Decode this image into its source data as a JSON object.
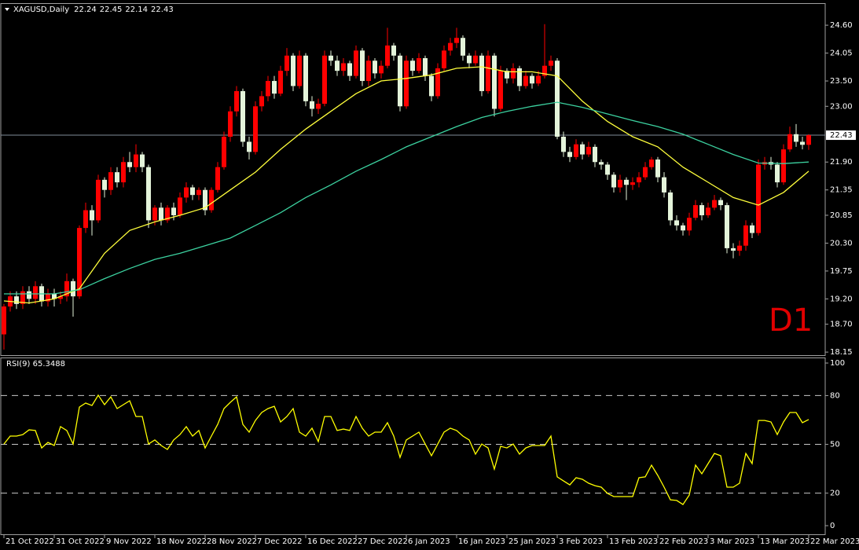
{
  "chart_data": [
    {
      "type": "candlestick",
      "symbol": "XAGUSD,Daily",
      "header_ohlc": [
        22.24,
        22.45,
        22.14,
        22.43
      ],
      "timeframe": "D1",
      "categories": [
        "21 Oct 2022",
        null,
        null,
        null,
        null,
        null,
        null,
        null,
        "31 Oct 2022",
        null,
        null,
        null,
        null,
        null,
        null,
        null,
        "9 Nov 2022",
        null,
        null,
        null,
        null,
        null,
        null,
        null,
        "18 Nov 2022",
        null,
        null,
        null,
        null,
        null,
        null,
        null,
        "28 Nov 2022",
        null,
        null,
        null,
        null,
        null,
        null,
        null,
        "7 Dec 2022",
        null,
        null,
        null,
        null,
        null,
        null,
        null,
        "16 Dec 2022",
        null,
        null,
        null,
        null,
        null,
        null,
        null,
        "27 Dec 2022",
        null,
        null,
        null,
        null,
        null,
        null,
        null,
        "6 Jan 2023",
        null,
        null,
        null,
        null,
        null,
        null,
        null,
        "16 Jan 2023",
        null,
        null,
        null,
        null,
        null,
        null,
        null,
        "25 Jan 2023",
        null,
        null,
        null,
        null,
        null,
        null,
        null,
        "3 Feb 2023",
        null,
        null,
        null,
        null,
        null,
        null,
        null,
        "13 Feb 2023",
        null,
        null,
        null,
        null,
        null,
        null,
        null,
        "22 Feb 2023",
        null,
        null,
        null,
        null,
        null,
        null,
        null,
        "3 Mar 2023",
        null,
        null,
        null,
        null,
        null,
        null,
        null,
        "13 Mar 2023",
        null,
        null,
        null,
        null,
        null,
        null,
        null,
        "22 Mar 2023"
      ],
      "open": [
        18.5,
        19.05,
        19.25,
        19.1,
        19.35,
        19.2,
        19.45,
        19.15,
        19.3,
        19.2,
        19.25,
        19.55,
        19.25,
        20.6,
        20.95,
        20.75,
        21.55,
        21.35,
        21.7,
        21.5,
        21.9,
        21.8,
        22.05,
        21.8,
        20.75,
        21.0,
        20.75,
        21.0,
        20.85,
        21.2,
        21.4,
        21.25,
        21.35,
        20.95,
        21.35,
        21.8,
        22.4,
        22.9,
        23.3,
        22.3,
        22.1,
        23.0,
        23.2,
        23.5,
        23.25,
        23.7,
        24.0,
        23.4,
        24.0,
        23.1,
        22.95,
        23.05,
        24.0,
        23.9,
        23.7,
        23.85,
        23.6,
        24.1,
        23.5,
        23.9,
        23.65,
        23.8,
        24.2,
        24.0,
        23.0,
        23.9,
        23.7,
        23.95,
        23.6,
        23.2,
        23.75,
        24.1,
        24.25,
        24.35,
        24.0,
        23.85,
        24.0,
        23.3,
        24.0,
        22.95,
        23.7,
        23.55,
        23.75,
        23.4,
        23.6,
        23.45,
        23.6,
        23.8,
        23.9,
        22.4,
        22.1,
        22.0,
        22.25,
        22.05,
        22.2,
        21.9,
        21.85,
        21.65,
        21.4,
        21.55,
        21.45,
        21.5,
        21.6,
        21.8,
        21.95,
        21.6,
        21.3,
        20.75,
        20.65,
        20.55,
        20.8,
        21.05,
        20.85,
        21.0,
        21.15,
        21.05,
        20.2,
        20.15,
        20.25,
        20.65,
        20.5,
        21.85,
        21.9,
        21.85,
        21.5,
        22.15,
        22.45,
        22.3,
        22.24
      ],
      "high": [
        19.1,
        19.35,
        19.35,
        19.45,
        19.45,
        19.55,
        19.5,
        19.4,
        19.4,
        19.35,
        19.7,
        19.6,
        20.65,
        21.1,
        21.05,
        21.65,
        21.6,
        21.8,
        21.8,
        22.0,
        22.1,
        22.25,
        22.1,
        21.85,
        21.05,
        21.1,
        21.05,
        21.1,
        21.3,
        21.5,
        21.45,
        21.4,
        21.4,
        21.4,
        21.9,
        22.5,
        23.0,
        23.4,
        23.35,
        22.4,
        23.1,
        23.3,
        23.6,
        23.6,
        23.8,
        24.15,
        24.05,
        24.1,
        24.05,
        23.2,
        23.15,
        24.1,
        24.1,
        24.0,
        23.95,
        23.9,
        24.2,
        24.15,
        24.0,
        23.95,
        23.9,
        24.55,
        24.25,
        24.05,
        24.0,
        23.95,
        24.05,
        24.0,
        23.65,
        23.85,
        24.2,
        24.35,
        24.55,
        24.4,
        24.05,
        24.1,
        24.05,
        24.1,
        24.05,
        23.8,
        23.75,
        23.85,
        23.8,
        23.7,
        23.65,
        23.7,
        24.62,
        24.0,
        23.95,
        22.5,
        22.2,
        22.35,
        22.3,
        22.3,
        22.25,
        21.95,
        21.9,
        21.7,
        21.65,
        21.6,
        21.6,
        21.7,
        21.9,
        22.0,
        22.0,
        21.7,
        21.35,
        20.85,
        20.7,
        20.9,
        21.15,
        21.1,
        21.1,
        21.25,
        21.2,
        21.1,
        20.3,
        20.35,
        20.75,
        20.7,
        21.95,
        22.0,
        22.0,
        21.9,
        22.25,
        22.6,
        22.65,
        22.4,
        22.45
      ],
      "low": [
        18.2,
        18.95,
        19.0,
        19.0,
        19.1,
        19.1,
        19.05,
        19.05,
        19.05,
        19.1,
        19.15,
        18.85,
        19.2,
        20.5,
        20.45,
        20.7,
        21.2,
        21.25,
        21.4,
        21.4,
        21.7,
        21.7,
        21.7,
        20.6,
        20.65,
        20.65,
        20.7,
        20.75,
        20.8,
        21.1,
        21.15,
        21.15,
        20.85,
        20.9,
        21.3,
        21.75,
        22.3,
        22.8,
        22.2,
        21.95,
        22.05,
        22.9,
        23.1,
        23.15,
        23.2,
        23.6,
        23.3,
        23.35,
        23.0,
        22.8,
        22.85,
        23.0,
        23.8,
        23.6,
        23.6,
        23.5,
        23.55,
        23.4,
        23.4,
        23.55,
        23.55,
        23.75,
        23.9,
        22.9,
        22.95,
        23.6,
        23.65,
        23.5,
        23.1,
        23.15,
        23.7,
        24.0,
        24.15,
        23.9,
        23.75,
        23.8,
        23.2,
        23.25,
        22.8,
        22.9,
        23.45,
        23.45,
        23.3,
        23.35,
        23.35,
        23.4,
        23.55,
        23.7,
        22.35,
        22.0,
        21.9,
        21.95,
        21.95,
        22.0,
        21.8,
        21.75,
        21.55,
        21.3,
        21.3,
        21.15,
        21.35,
        21.4,
        21.55,
        21.75,
        21.5,
        21.2,
        20.65,
        20.55,
        20.45,
        20.45,
        20.75,
        20.75,
        20.8,
        20.95,
        20.95,
        20.1,
        20.0,
        20.05,
        20.15,
        20.4,
        20.45,
        21.75,
        21.75,
        21.4,
        21.45,
        22.1,
        22.2,
        22.15,
        22.14
      ],
      "close": [
        19.05,
        19.25,
        19.1,
        19.35,
        19.2,
        19.45,
        19.15,
        19.3,
        19.2,
        19.25,
        19.55,
        19.25,
        20.6,
        20.95,
        20.75,
        21.55,
        21.35,
        21.7,
        21.5,
        21.9,
        21.8,
        22.05,
        21.8,
        20.75,
        21.0,
        20.75,
        21.0,
        20.85,
        21.2,
        21.4,
        21.25,
        21.35,
        20.95,
        21.35,
        21.8,
        22.4,
        22.9,
        23.3,
        22.3,
        22.1,
        23.0,
        23.2,
        23.5,
        23.25,
        23.7,
        24.0,
        23.4,
        24.0,
        23.1,
        22.95,
        23.05,
        24.0,
        23.9,
        23.7,
        23.85,
        23.6,
        24.1,
        23.5,
        23.9,
        23.65,
        23.8,
        24.2,
        24.0,
        23.0,
        23.9,
        23.7,
        23.95,
        23.6,
        23.2,
        23.75,
        24.1,
        24.25,
        24.35,
        24.0,
        23.85,
        24.0,
        23.3,
        24.0,
        22.95,
        23.7,
        23.55,
        23.75,
        23.4,
        23.6,
        23.45,
        23.6,
        23.8,
        23.9,
        22.4,
        22.1,
        22.0,
        22.25,
        22.05,
        22.2,
        21.9,
        21.85,
        21.65,
        21.4,
        21.55,
        21.45,
        21.5,
        21.6,
        21.8,
        21.95,
        21.6,
        21.3,
        20.75,
        20.65,
        20.55,
        20.8,
        21.05,
        20.85,
        21.0,
        21.15,
        21.05,
        20.2,
        20.15,
        20.25,
        20.65,
        20.5,
        21.85,
        21.9,
        21.85,
        21.5,
        22.15,
        22.45,
        22.3,
        22.24,
        22.43
      ],
      "up_color": "#ff0000",
      "down_color": "#e4f4da",
      "ma_x": [
        0,
        4,
        8,
        12,
        16,
        20,
        24,
        28,
        32,
        36,
        40,
        44,
        48,
        52,
        56,
        60,
        64,
        68,
        72,
        76,
        80,
        84,
        88,
        92,
        96,
        100,
        104,
        108,
        112,
        116,
        120,
        124,
        128
      ],
      "overlays": [
        {
          "color": "#ffff3c",
          "values": [
            19.16,
            19.12,
            19.2,
            19.4,
            20.1,
            20.55,
            20.72,
            20.85,
            21.0,
            21.35,
            21.7,
            22.15,
            22.55,
            22.9,
            23.25,
            23.5,
            23.55,
            23.62,
            23.75,
            23.78,
            23.68,
            23.68,
            23.6,
            23.1,
            22.7,
            22.4,
            22.2,
            21.8,
            21.5,
            21.2,
            21.05,
            21.3,
            21.72
          ]
        },
        {
          "color": "#3cd2a0",
          "values": [
            19.3,
            19.3,
            19.3,
            19.38,
            19.6,
            19.8,
            19.98,
            20.1,
            20.25,
            20.4,
            20.65,
            20.9,
            21.2,
            21.45,
            21.72,
            21.95,
            22.2,
            22.4,
            22.6,
            22.78,
            22.9,
            23.0,
            23.08,
            22.98,
            22.85,
            22.72,
            22.6,
            22.45,
            22.25,
            22.05,
            21.88,
            21.87,
            21.9
          ]
        }
      ],
      "last_price": 22.43,
      "ylim": [
        18.09,
        25.02
      ],
      "yticks": [
        {
          "value": 24.6,
          "label": "24.60"
        },
        24.05,
        {
          "value": 23.5,
          "label": "23.50"
        },
        {
          "value": 23.0,
          "label": "23.00"
        },
        {
          "value": 21.9,
          "label": "21.90"
        },
        21.35,
        20.85,
        {
          "value": 20.3,
          "label": "20.30"
        },
        19.75,
        {
          "value": 19.2,
          "label": "19.20"
        },
        {
          "value": 18.7,
          "label": "18.70"
        },
        18.15
      ]
    },
    {
      "type": "line",
      "title": "RSI(9) 65.3488",
      "color": "#ffff00",
      "values": [
        50.2,
        55.1,
        55.1,
        56.0,
        58.9,
        58.5,
        47.8,
        51.2,
        49.3,
        60.9,
        58.5,
        50.2,
        72.9,
        75.4,
        73.9,
        80.2,
        74.4,
        79.2,
        72.0,
        74.4,
        76.8,
        67.1,
        67.1,
        50.2,
        52.7,
        49.3,
        46.9,
        52.7,
        56.0,
        60.9,
        55.1,
        58.5,
        47.8,
        55.1,
        62.3,
        72.0,
        75.8,
        79.2,
        62.3,
        57.5,
        64.7,
        69.6,
        72.0,
        73.4,
        63.8,
        67.1,
        72.0,
        57.5,
        55.1,
        59.9,
        51.7,
        67.1,
        67.1,
        58.5,
        59.4,
        58.5,
        67.1,
        59.9,
        55.1,
        57.5,
        57.5,
        63.3,
        55.1,
        42.0,
        52.7,
        55.1,
        57.5,
        50.2,
        43.0,
        50.2,
        57.5,
        59.9,
        58.5,
        55.1,
        52.7,
        44.0,
        50.2,
        47.8,
        34.8,
        48.8,
        47.8,
        50.2,
        44.0,
        47.8,
        49.3,
        49.3,
        49.3,
        55.1,
        30.0,
        27.5,
        25.1,
        29.5,
        28.5,
        26.1,
        24.6,
        23.7,
        19.8,
        17.9,
        17.9,
        17.9,
        17.9,
        29.5,
        30.0,
        37.2,
        30.9,
        23.7,
        15.9,
        15.5,
        13.0,
        18.8,
        37.2,
        31.9,
        38.2,
        44.4,
        43.0,
        23.7,
        23.7,
        26.1,
        44.4,
        38.2,
        64.7,
        64.7,
        63.8,
        56.0,
        63.8,
        69.6,
        69.6,
        63.3,
        65.3
      ],
      "levels": [
        20,
        50,
        80
      ],
      "ylim": [
        -5.3,
        103.4
      ],
      "yticks": [
        100,
        80,
        50,
        20,
        0
      ]
    }
  ]
}
